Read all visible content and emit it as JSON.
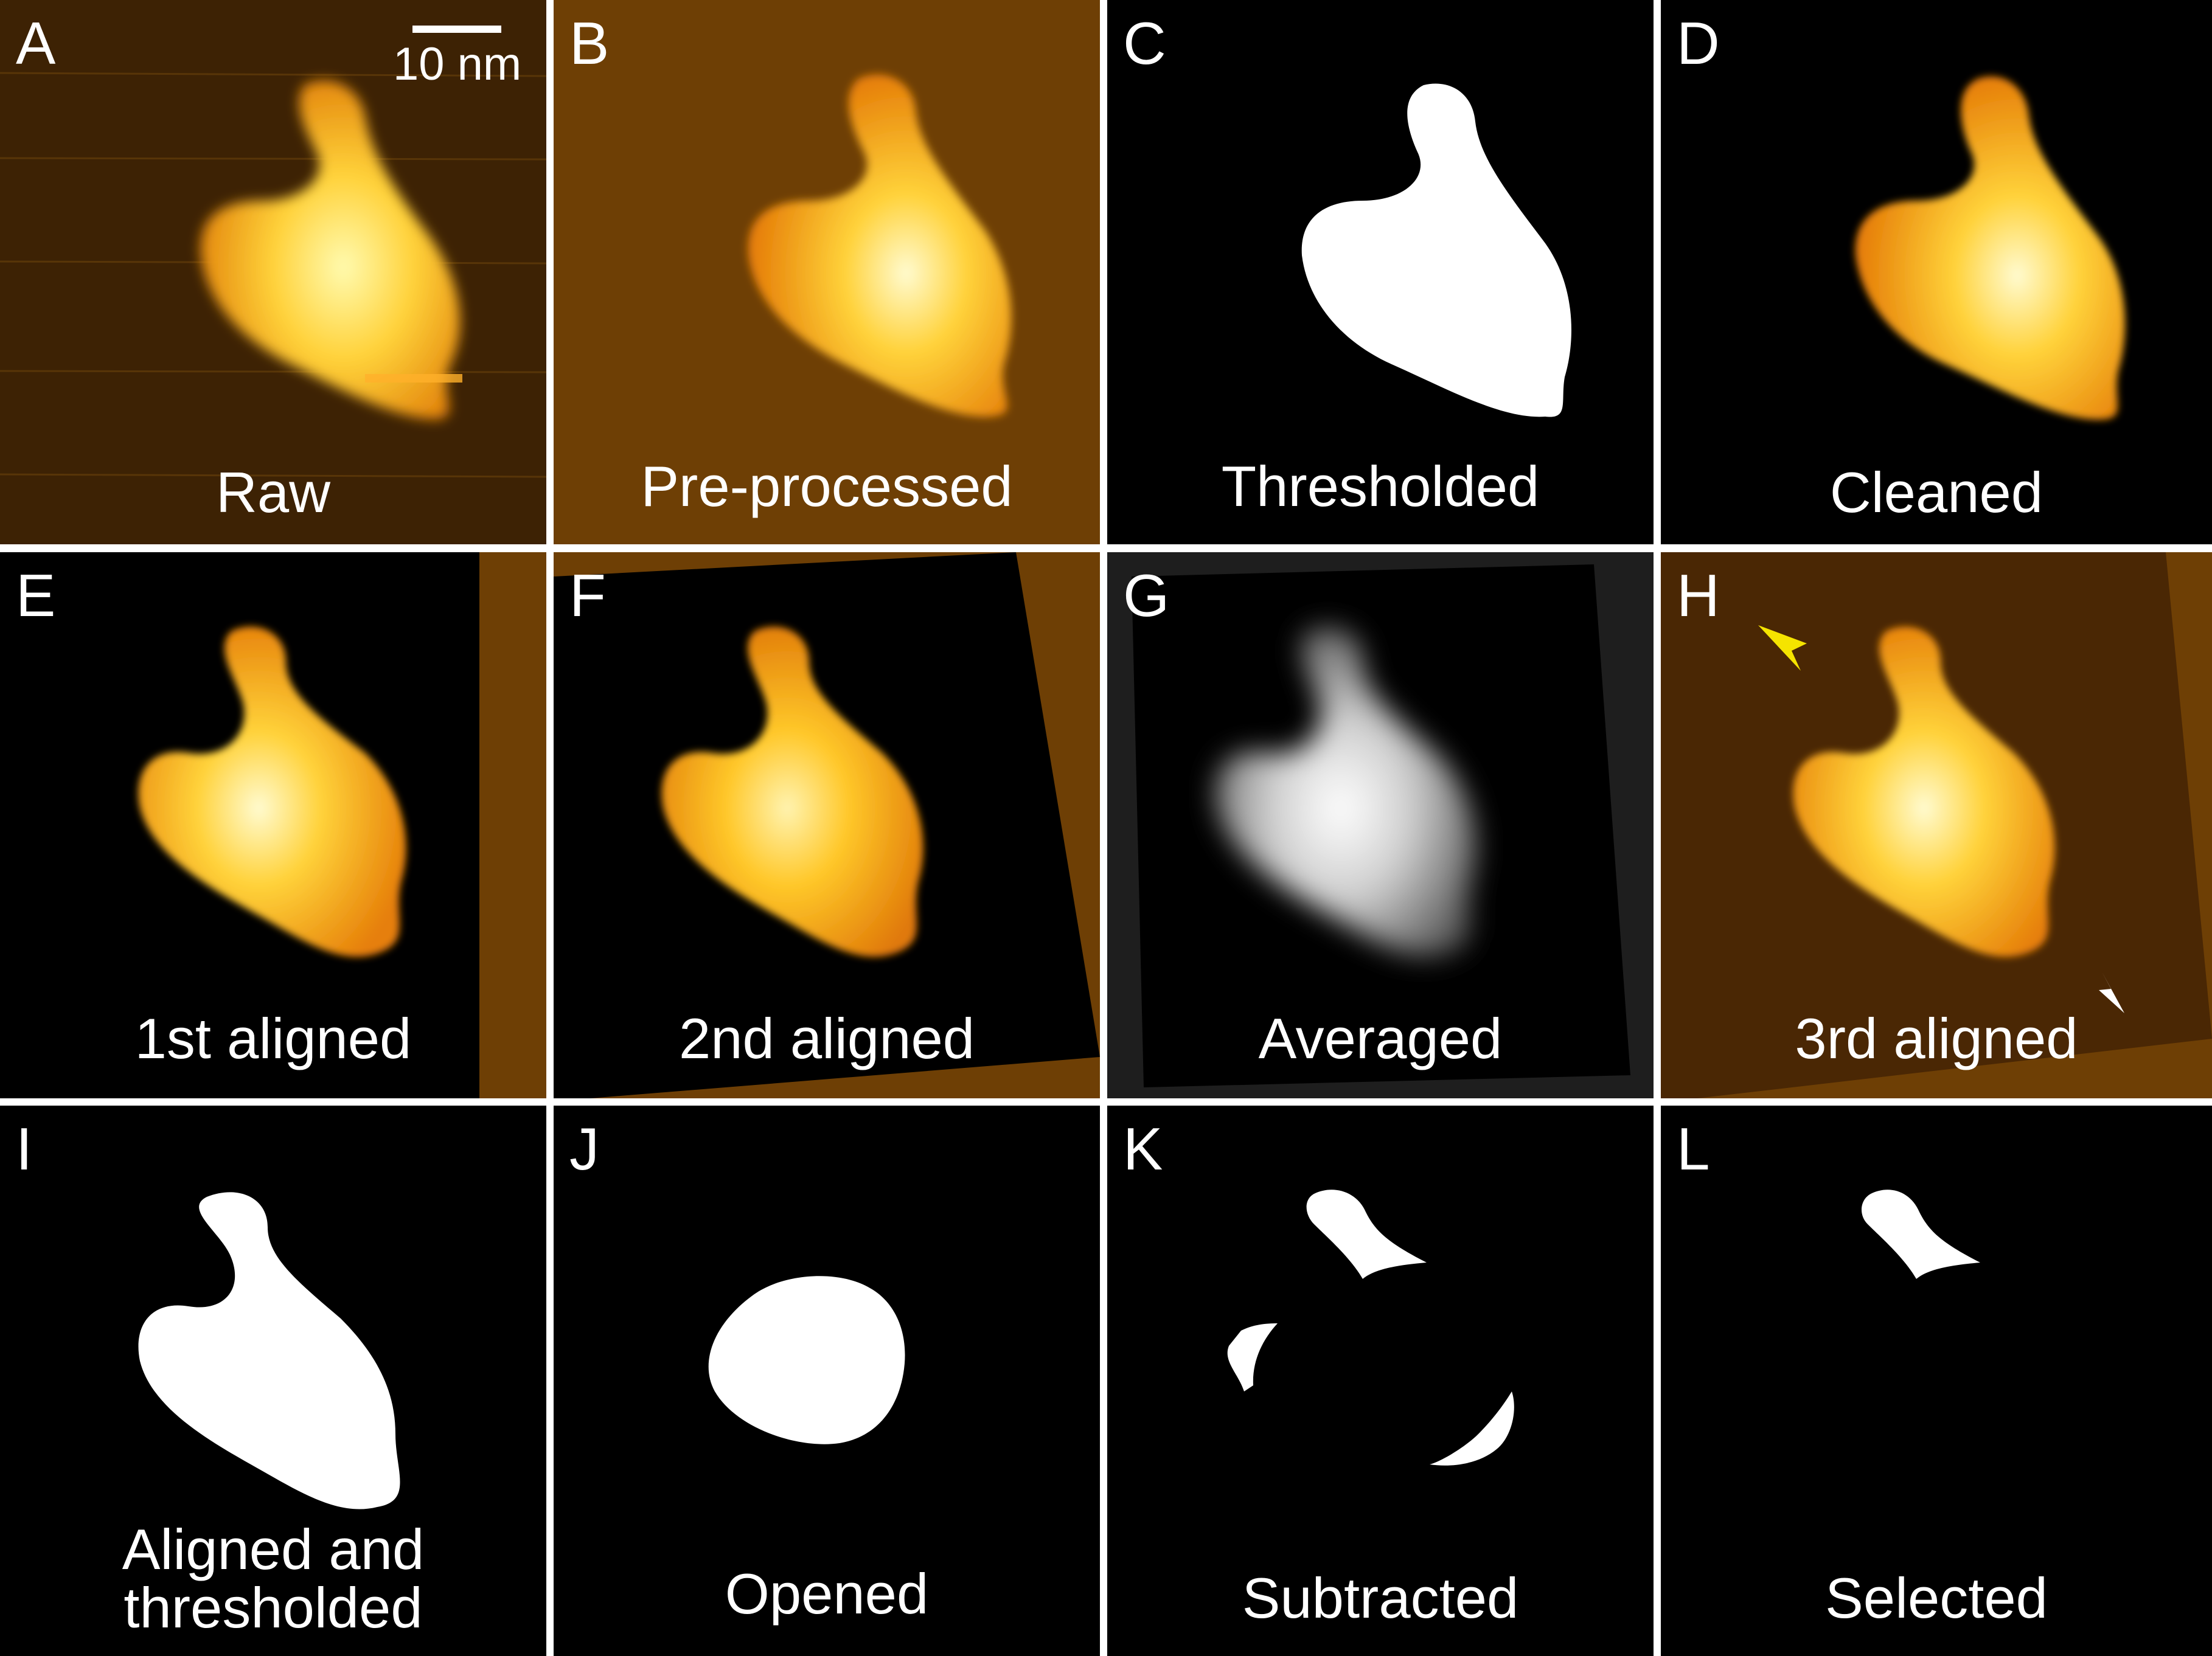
{
  "figure": {
    "scale_bar_label": "10 nm",
    "panels": [
      {
        "letter": "A",
        "caption": "Raw"
      },
      {
        "letter": "B",
        "caption": "Pre-processed"
      },
      {
        "letter": "C",
        "caption": "Thresholded"
      },
      {
        "letter": "D",
        "caption": "Cleaned"
      },
      {
        "letter": "E",
        "caption": "1st aligned"
      },
      {
        "letter": "F",
        "caption": "2nd aligned"
      },
      {
        "letter": "G",
        "caption": "Averaged"
      },
      {
        "letter": "H",
        "caption": "3rd aligned"
      },
      {
        "letter": "I",
        "caption_line1": "Aligned and",
        "caption_line2": "thresholded"
      },
      {
        "letter": "J",
        "caption": "Opened"
      },
      {
        "letter": "K",
        "caption": "Subtracted"
      },
      {
        "letter": "L",
        "caption": "Selected"
      }
    ]
  },
  "colors": {
    "afm_background": "#6e3f05",
    "afm_dark_background": "#4a2704",
    "afm_molecule_edge": "#f08a08",
    "afm_molecule_core": "#fff7a8",
    "mask": "#ffffff",
    "panel_black": "#000000",
    "divider": "#ffffff",
    "arrowhead_yellow": "#f5e400",
    "arrowhead_white": "#ffffff"
  }
}
